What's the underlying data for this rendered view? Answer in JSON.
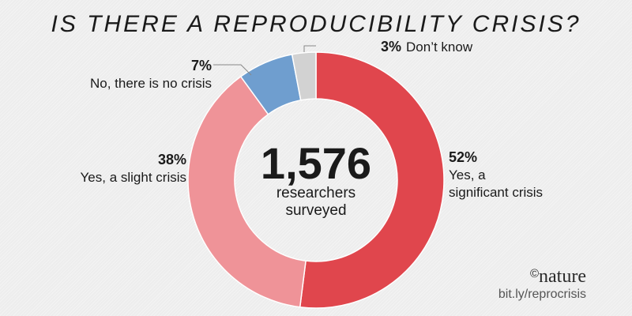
{
  "chart_data": {
    "type": "pie",
    "title": "IS THERE A REPRODUCIBILITY CRISIS?",
    "center_value": "1,576",
    "center_label_lines": [
      "researchers",
      "surveyed"
    ],
    "slices": [
      {
        "value": 52,
        "pct_label": "52%",
        "label_lines": [
          "Yes, a",
          "significant crisis"
        ],
        "color": "#e0464d"
      },
      {
        "value": 38,
        "pct_label": "38%",
        "label_lines": [
          "Yes, a slight crisis"
        ],
        "color": "#ef9398"
      },
      {
        "value": 7,
        "pct_label": "7%",
        "label_lines": [
          "No, there is no crisis"
        ],
        "color": "#6f9ecf"
      },
      {
        "value": 3,
        "pct_label": "3%",
        "label_lines": [
          "Don’t know"
        ],
        "color": "#d2d2d2"
      }
    ]
  },
  "credit": {
    "copyright_symbol": "©",
    "brand": "nature",
    "source": "bit.ly/reprocrisis"
  }
}
